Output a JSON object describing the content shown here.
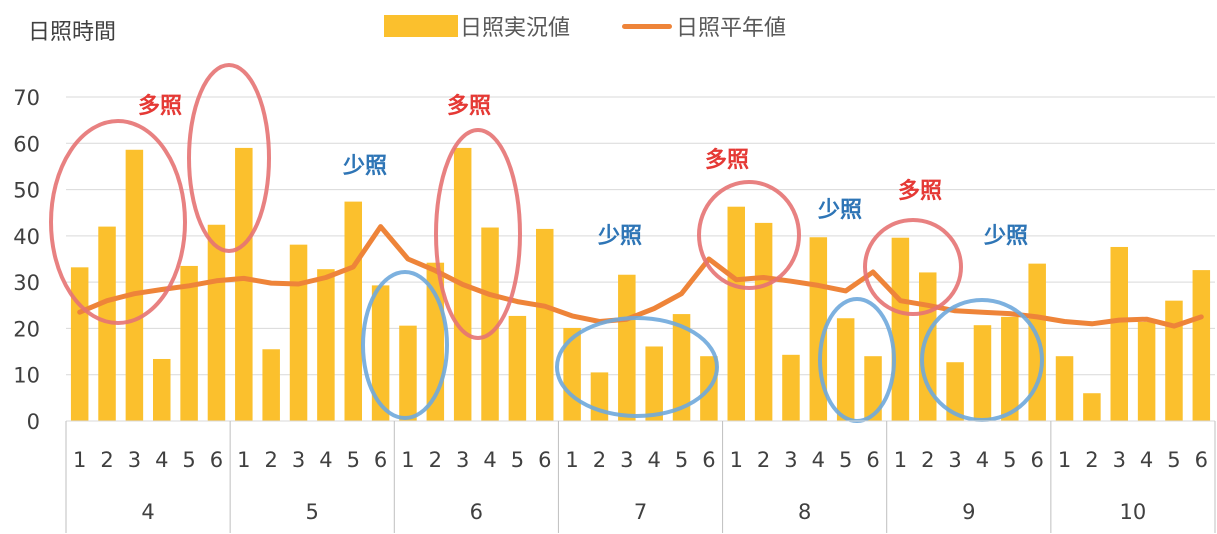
{
  "chart_data": {
    "type": "bar+line",
    "ylabel": "日照時間",
    "ylim": [
      0,
      70
    ],
    "yticks": [
      "0",
      "10",
      "20",
      "30",
      "40",
      "50",
      "60",
      "70"
    ],
    "months": [
      "4",
      "5",
      "6",
      "7",
      "8",
      "9",
      "10"
    ],
    "sub_ticks": [
      "1",
      "2",
      "3",
      "4",
      "5",
      "6"
    ],
    "series": [
      {
        "name": "日照実況値",
        "type": "bar",
        "color": "#FBC02D",
        "values": [
          33.2,
          42,
          58.6,
          13.4,
          33.5,
          42.4,
          59,
          15.5,
          38.1,
          32.8,
          47.4,
          29.3,
          20.6,
          34.2,
          59,
          41.8,
          22.7,
          41.5,
          20.1,
          10.5,
          31.6,
          16.1,
          23.1,
          14,
          46.3,
          42.8,
          14.3,
          39.7,
          22.2,
          14,
          39.6,
          32.1,
          12.7,
          20.7,
          22.5,
          34,
          14,
          6,
          37.6,
          21.4,
          26,
          32.6
        ]
      },
      {
        "name": "日照平年値",
        "type": "line",
        "color": "#EE8439",
        "values": [
          23.5,
          26,
          27.5,
          28.4,
          29.2,
          30.3,
          30.8,
          29.8,
          29.6,
          31,
          33.3,
          42,
          35,
          32.5,
          29.5,
          27.3,
          25.8,
          24.8,
          22.7,
          21.5,
          22,
          24.3,
          27.5,
          35,
          30.5,
          31,
          30.2,
          29.3,
          28.1,
          32.2,
          26,
          25,
          23.8,
          23.5,
          23.2,
          22.5,
          21.5,
          21,
          21.8,
          22,
          20.5,
          22.5
        ]
      }
    ],
    "annotations": [
      {
        "label": "多照",
        "color": "#E53935"
      },
      {
        "label": "少照",
        "color": "#2E75B6"
      },
      {
        "label": "多照",
        "color": "#E53935"
      },
      {
        "label": "少照",
        "color": "#2E75B6"
      },
      {
        "label": "多照",
        "color": "#E53935"
      },
      {
        "label": "少照",
        "color": "#2E75B6"
      },
      {
        "label": "多照",
        "color": "#E53935"
      },
      {
        "label": "少照",
        "color": "#2E75B6"
      }
    ]
  }
}
